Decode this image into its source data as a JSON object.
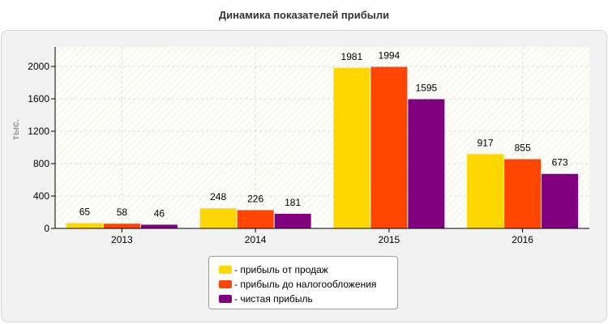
{
  "title": "Динамика показателей прибыли",
  "chart_data": {
    "type": "bar",
    "title": "Динамика показателей прибыли",
    "xlabel": "",
    "ylabel": "тыс.",
    "categories": [
      "2013",
      "2014",
      "2015",
      "2016"
    ],
    "series": [
      {
        "name": "- прибыль от продаж",
        "color": "#ffd700",
        "values": [
          65,
          248,
          1981,
          917
        ]
      },
      {
        "name": "- прибыль до налогообложения",
        "color": "#ff4500",
        "values": [
          58,
          226,
          1994,
          855
        ]
      },
      {
        "name": "- чистая прибыль",
        "color": "#800080",
        "values": [
          46,
          181,
          1595,
          673
        ]
      }
    ],
    "ylim": [
      0,
      2240
    ],
    "yticks": [
      0,
      400,
      800,
      1200,
      1600,
      2000
    ],
    "grid": true,
    "legend_position": "bottom"
  }
}
